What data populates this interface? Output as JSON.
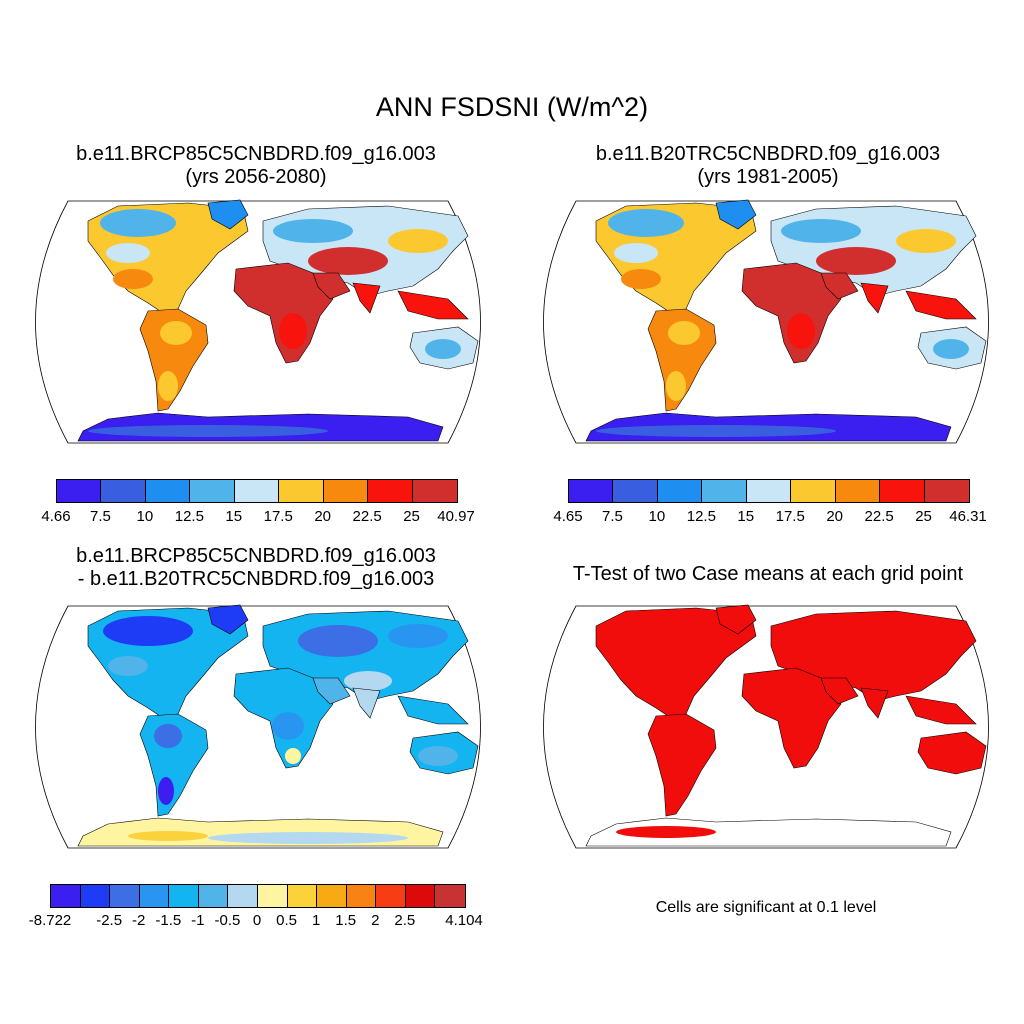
{
  "title": "ANN FSDSNI (W/m^2)",
  "panels": [
    {
      "title_line1": "b.e11.BRCP85C5CNBDRD.f09_g16.003",
      "title_line2": "(yrs 2056-2080)",
      "colorbar": {
        "labels": [
          "4.66",
          "7.5",
          "10",
          "12.5",
          "15",
          "17.5",
          "20",
          "22.5",
          "25",
          "40.97"
        ],
        "colors": [
          "#3b1ef0",
          "#3a5ee0",
          "#1e8ef0",
          "#50b4ea",
          "#c8e6f6",
          "#fcc830",
          "#f78a0e",
          "#f8140c",
          "#d12e2e"
        ]
      }
    },
    {
      "title_line1": "b.e11.B20TRC5CNBDRD.f09_g16.003",
      "title_line2": "(yrs 1981-2005)",
      "colorbar": {
        "labels": [
          "4.65",
          "7.5",
          "10",
          "12.5",
          "15",
          "17.5",
          "20",
          "22.5",
          "25",
          "46.31"
        ],
        "colors": [
          "#3b1ef0",
          "#3a5ee0",
          "#1e8ef0",
          "#50b4ea",
          "#c8e6f6",
          "#fcc830",
          "#f78a0e",
          "#f8140c",
          "#d12e2e"
        ]
      }
    },
    {
      "title_line1": "b.e11.BRCP85C5CNBDRD.f09_g16.003",
      "title_line2": "- b.e11.B20TRC5CNBDRD.f09_g16.003",
      "colorbar": {
        "labels": [
          "-8.722",
          "-2.5",
          "-2",
          "-1.5",
          "-1",
          "-0.5",
          "0",
          "0.5",
          "1",
          "1.5",
          "2",
          "2.5",
          "4.104"
        ],
        "label_slots": [
          0,
          2,
          3,
          4,
          5,
          6,
          7,
          8,
          9,
          10,
          11,
          12,
          14
        ],
        "colors": [
          "#3d1ef0",
          "#1e3cf5",
          "#3c6ee6",
          "#2896f0",
          "#14b4f0",
          "#50b4ea",
          "#b4d8f0",
          "#fff5a0",
          "#fcd23c",
          "#f8aa14",
          "#f88214",
          "#f83c14",
          "#dc0a0a",
          "#c83232"
        ]
      }
    },
    {
      "title_line1": "T-Test of two Case means at each grid point",
      "note": "Cells are significant at 0.1 level",
      "fill_color": "#f20d0d"
    }
  ]
}
